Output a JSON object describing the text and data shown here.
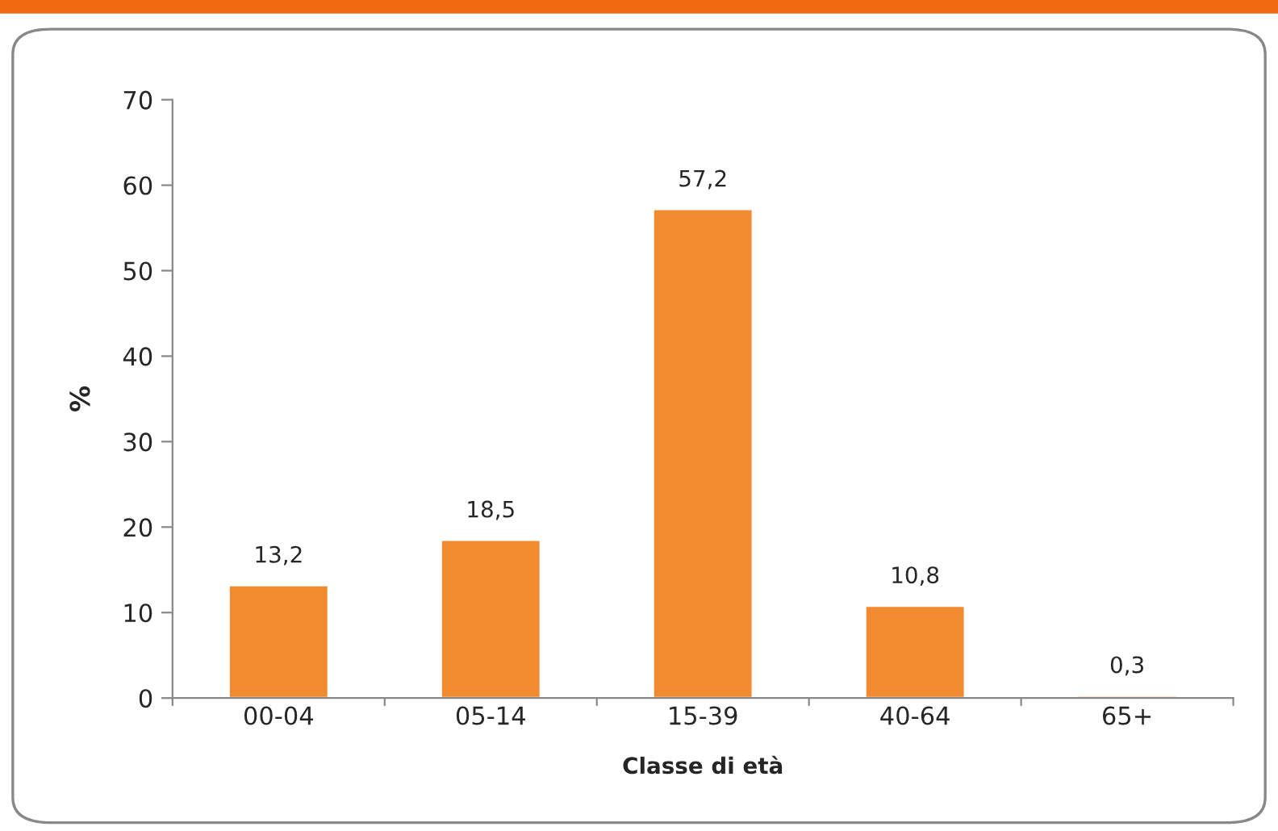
{
  "chart_data": {
    "type": "bar",
    "xlabel": "Classe di età",
    "ylabel": "%",
    "categories": [
      "00-04",
      "05-14",
      "15-39",
      "40-64",
      "65+"
    ],
    "values": [
      13.2,
      18.5,
      57.2,
      10.8,
      0.3
    ],
    "value_labels": [
      "13,2",
      "18,5",
      "57,2",
      "10,8",
      "0,3"
    ],
    "color": "#f28a30",
    "ylim": [
      0,
      70
    ],
    "yticks": [
      0,
      10,
      20,
      30,
      40,
      50,
      60,
      70
    ]
  }
}
